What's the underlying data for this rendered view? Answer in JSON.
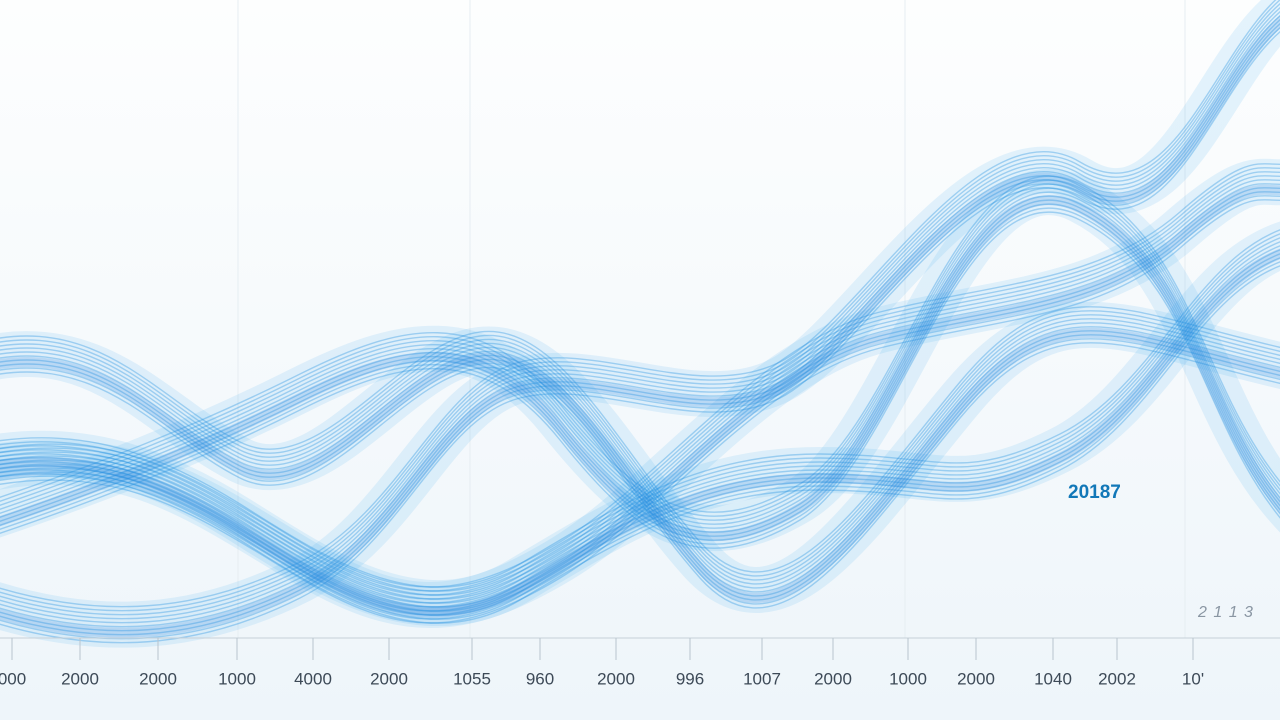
{
  "axis_labels": [
    "000",
    "2000",
    "2000",
    "1000",
    "4000",
    "2000",
    "1055",
    "960",
    "2000",
    "996",
    "1007",
    "2000",
    "1000",
    "2000",
    "1040",
    "2002",
    "10'"
  ],
  "annotation": "20187",
  "corner_label": "2 1 1 3"
}
